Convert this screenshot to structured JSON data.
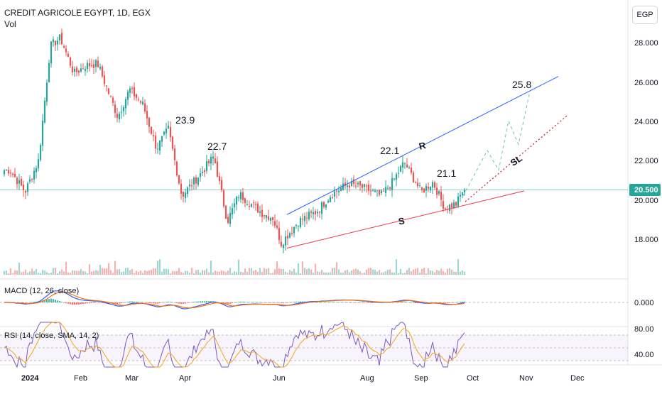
{
  "header": {
    "symbol_line": "CREDIT AGRICOLE EGYPT, 1D, EGX",
    "volume_label": "Vol",
    "currency_badge": "EGP"
  },
  "price_axis": {
    "ticks": [
      "28.000",
      "26.000",
      "24.000",
      "22.000",
      "20.000",
      "18.000"
    ],
    "last_price": "20.500"
  },
  "macd": {
    "label": "MACD (12, 26, close)",
    "tick": "0.000"
  },
  "rsi": {
    "label": "RSI (14, close, SMA, 14, 2)",
    "ticks": [
      "80.00",
      "40.00"
    ]
  },
  "time_axis": [
    "2024",
    "Feb",
    "Mar",
    "Apr",
    "Jun",
    "Aug",
    "Sep",
    "Oct",
    "Nov",
    "Dec"
  ],
  "annotations": {
    "peak_1": "23.9",
    "peak_2": "22.7",
    "peak_3": "22.1",
    "peak_4": "21.1",
    "target": "25.8",
    "resistance": "R",
    "support": "S",
    "stop_loss": "SL"
  },
  "colors": {
    "up": "#26a69a",
    "down": "#ef5350",
    "resistance_line": "#2962ff",
    "support_line": "#f23645",
    "last_price_line": "#26a69a",
    "macd_line": "#2962ff",
    "signal_line": "#ff6d00",
    "rsi_line": "#7e57c2",
    "rsi_ma": "#f7a21b"
  },
  "chart_data": {
    "type": "candlestick",
    "title": "CREDIT AGRICOLE EGYPT, 1D, EGX",
    "ylim": [
      16.8,
      29.5
    ],
    "closes": [
      {
        "date": "2024-01-01",
        "close": 21.5
      },
      {
        "date": "2024-01-10",
        "close": 20.4
      },
      {
        "date": "2024-01-18",
        "close": 22.0
      },
      {
        "date": "2024-01-25",
        "close": 27.8
      },
      {
        "date": "2024-01-31",
        "close": 28.2
      },
      {
        "date": "2024-02-08",
        "close": 26.4
      },
      {
        "date": "2024-02-15",
        "close": 26.8
      },
      {
        "date": "2024-02-22",
        "close": 26.9
      },
      {
        "date": "2024-03-05",
        "close": 24.2
      },
      {
        "date": "2024-03-12",
        "close": 25.6
      },
      {
        "date": "2024-03-20",
        "close": 24.8
      },
      {
        "date": "2024-03-28",
        "close": 22.6
      },
      {
        "date": "2024-04-04",
        "close": 23.6
      },
      {
        "date": "2024-04-12",
        "close": 20.2
      },
      {
        "date": "2024-04-22",
        "close": 21.2
      },
      {
        "date": "2024-05-01",
        "close": 22.2
      },
      {
        "date": "2024-05-09",
        "close": 18.9
      },
      {
        "date": "2024-05-16",
        "close": 20.3
      },
      {
        "date": "2024-05-23",
        "close": 19.8
      },
      {
        "date": "2024-05-30",
        "close": 19.3
      },
      {
        "date": "2024-06-05",
        "close": 19.1
      },
      {
        "date": "2024-06-10",
        "close": 17.8
      },
      {
        "date": "2024-06-20",
        "close": 18.9
      },
      {
        "date": "2024-07-01",
        "close": 19.4
      },
      {
        "date": "2024-07-10",
        "close": 20.3
      },
      {
        "date": "2024-07-20",
        "close": 20.8
      },
      {
        "date": "2024-07-29",
        "close": 20.6
      },
      {
        "date": "2024-08-08",
        "close": 20.2
      },
      {
        "date": "2024-08-15",
        "close": 20.9
      },
      {
        "date": "2024-08-22",
        "close": 21.9
      },
      {
        "date": "2024-09-01",
        "close": 20.4
      },
      {
        "date": "2024-09-08",
        "close": 20.9
      },
      {
        "date": "2024-09-15",
        "close": 19.6
      },
      {
        "date": "2024-09-22",
        "close": 19.8
      },
      {
        "date": "2024-09-26",
        "close": 20.5
      }
    ],
    "volume_note": "volume bars shown below price",
    "last_price": 20.5
  }
}
